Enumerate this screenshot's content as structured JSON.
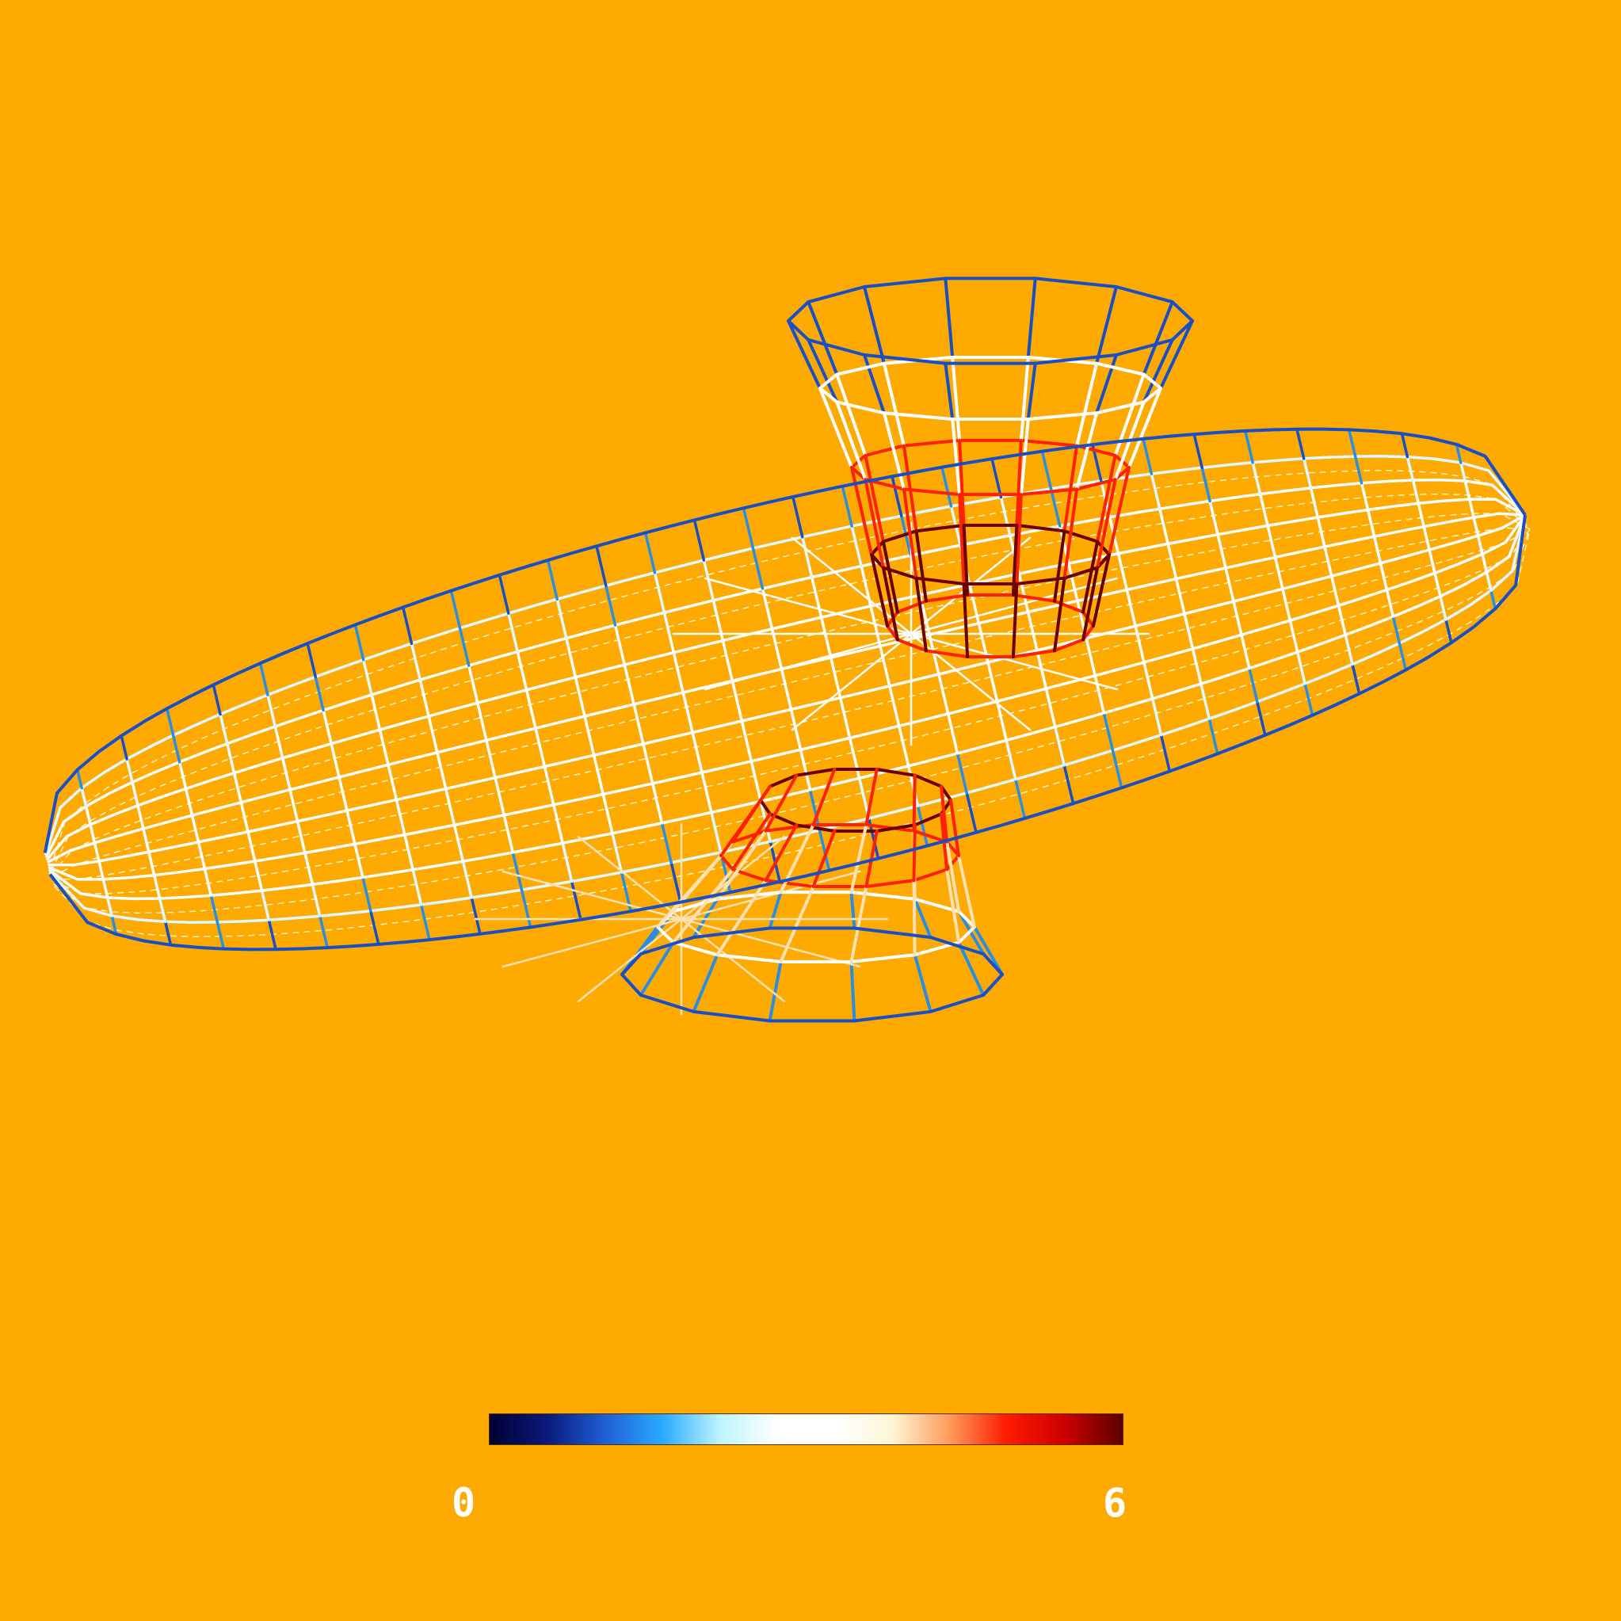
{
  "background_color": "#FFAA00",
  "colorbar": {
    "min_label": "0",
    "max_label": "6",
    "colormap": [
      "#000033",
      "#0a1a7a",
      "#1f5fd6",
      "#29aaff",
      "#bff4ff",
      "#ffffff",
      "#ffffff",
      "#fff6d6",
      "#ff9a5a",
      "#ff1a00",
      "#cc0000",
      "#5c0000"
    ]
  },
  "edge_colors": {
    "outline": "#1a4fc4",
    "low": "#2a8ee0",
    "pale": "#dff8ff",
    "mid": "#ffffff",
    "warm": "#ffe0b0",
    "high": "#ff2200",
    "peak": "#6a0000",
    "back": "#fff2c0"
  },
  "surface": {
    "description_mode": "wireframe",
    "rim_segments": 14
  }
}
